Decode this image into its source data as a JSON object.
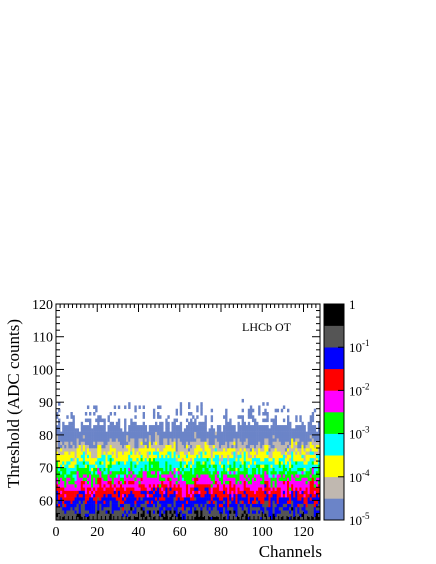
{
  "chart_data": {
    "type": "heatmap",
    "annotation": "LHCb OT",
    "xlabel": "Channels",
    "ylabel": "Threshold (ADC counts)",
    "xlim": [
      0,
      128
    ],
    "ylim": [
      54,
      120
    ],
    "x_ticks": [
      0,
      20,
      40,
      60,
      80,
      100,
      120
    ],
    "y_ticks": [
      60,
      70,
      80,
      90,
      100,
      110,
      120
    ],
    "z_scale": "log",
    "zlim": [
      1e-05,
      1
    ],
    "z_tick_labels": [
      {
        "base": "1",
        "exp": ""
      },
      {
        "base": "10",
        "exp": "-1"
      },
      {
        "base": "10",
        "exp": "-2"
      },
      {
        "base": "10",
        "exp": "-3"
      },
      {
        "base": "10",
        "exp": "-4"
      },
      {
        "base": "10",
        "exp": "-5"
      }
    ],
    "palette_colors": [
      "#6b84c8",
      "#c0b8b0",
      "#ffff00",
      "#00ffff",
      "#00ff00",
      "#ff00ff",
      "#ff0000",
      "#0000ff",
      "#555555",
      "#000000"
    ],
    "bin_width_x": 1,
    "bin_width_y": 1,
    "band_bottom": 54,
    "band_top_min": 81,
    "band_top_max": 92
  }
}
